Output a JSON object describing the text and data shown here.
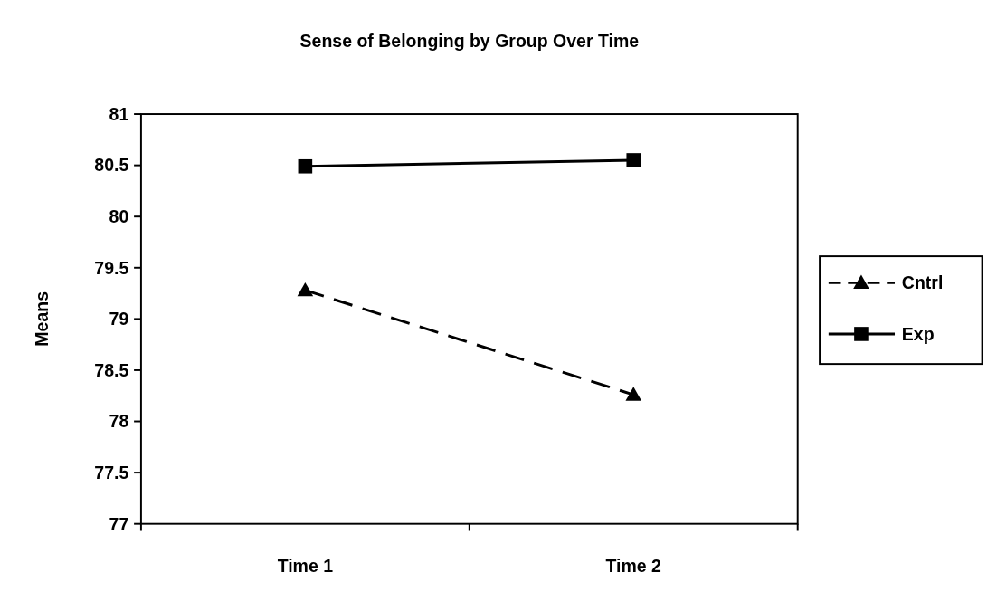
{
  "chart_data": {
    "type": "line",
    "title": "Sense of Belonging by Group Over Time",
    "ylabel": "Means",
    "categories": [
      "Time 1",
      "Time 2"
    ],
    "series": [
      {
        "name": "Cntrl",
        "color": "#000000",
        "values": [
          79.28,
          78.26
        ],
        "marker": "triangle",
        "line_style": "dashed"
      },
      {
        "name": "Exp",
        "color": "#000000",
        "values": [
          80.49,
          80.55
        ],
        "marker": "square",
        "line_style": "solid"
      }
    ],
    "ylim": [
      77,
      81
    ],
    "yticks": [
      77,
      77.5,
      78,
      78.5,
      79,
      79.5,
      80,
      80.5,
      81
    ],
    "grid": false,
    "legend": "right"
  }
}
